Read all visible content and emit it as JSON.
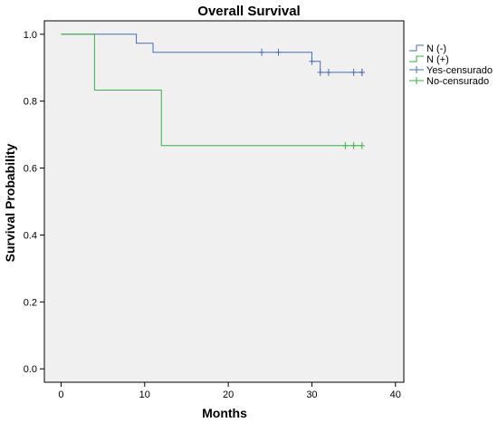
{
  "chart_data": {
    "type": "line",
    "title": "Overall Survival",
    "xlabel": "Months",
    "ylabel": "Survival Probability",
    "xlim": [
      -2,
      41
    ],
    "ylim": [
      -0.04,
      1.04
    ],
    "x_ticks": [
      0,
      10,
      20,
      30,
      40
    ],
    "x_tick_labels": [
      "0",
      "10",
      "20",
      "30",
      "40"
    ],
    "y_ticks": [
      0.0,
      0.2,
      0.4,
      0.6,
      0.8,
      1.0
    ],
    "y_tick_labels": [
      "0.0",
      "0.2",
      "0.4",
      "0.6",
      "0.8",
      "1.0"
    ],
    "grid": false,
    "plot_background": "#f0f0f0",
    "legend_position": "right",
    "series": [
      {
        "name": "N (-)",
        "color": "#4a6cb3",
        "steps": [
          [
            0,
            1.0
          ],
          [
            9,
            0.973
          ],
          [
            11,
            0.946
          ],
          [
            30,
            0.919
          ],
          [
            31,
            0.886
          ],
          [
            36,
            0.886
          ]
        ],
        "censored": [
          24,
          26,
          30,
          31,
          32,
          35,
          36,
          36
        ]
      },
      {
        "name": "N (+)",
        "color": "#3cb04a",
        "steps": [
          [
            0,
            1.0
          ],
          [
            4,
            0.833
          ],
          [
            12,
            0.667
          ],
          [
            36,
            0.667
          ]
        ],
        "censored": [
          34,
          35,
          36
        ]
      }
    ],
    "legend": [
      {
        "label": "N (-)",
        "kind": "line",
        "color": "#4a6cb3"
      },
      {
        "label": "N (+)",
        "kind": "line",
        "color": "#3cb04a"
      },
      {
        "label": "Yes-censurado",
        "kind": "censor",
        "color": "#4a6cb3"
      },
      {
        "label": "No-censurado",
        "kind": "censor",
        "color": "#3cb04a"
      }
    ]
  }
}
